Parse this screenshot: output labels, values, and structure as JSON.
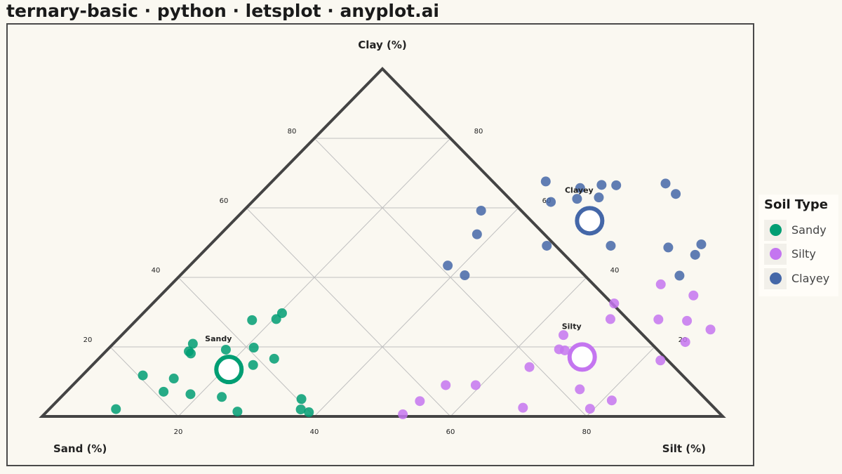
{
  "title": "ternary-basic · python · letsplot · anyplot.ai",
  "colors": {
    "sandy": "#009E73",
    "silty": "#C475F0",
    "clayey": "#4467A8",
    "frame": "#444444",
    "grid": "#C0C0C0"
  },
  "legend": {
    "title": "Soil Type",
    "items": [
      {
        "label": "Sandy",
        "color": "#009E73"
      },
      {
        "label": "Silty",
        "color": "#C475F0"
      },
      {
        "label": "Clayey",
        "color": "#4467A8"
      }
    ]
  },
  "chart_data": {
    "type": "scatter",
    "coordinate_system": "ternary",
    "axes": {
      "top": "Clay (%)",
      "left": "Sand (%)",
      "right": "Silt (%)"
    },
    "ticks": [
      20,
      40,
      60,
      80
    ],
    "grid": true,
    "legend_position": "right",
    "series": [
      {
        "name": "Sandy",
        "color": "#009E73",
        "centroid": {
          "x": 20.7,
          "clay": 13.5,
          "label": "Sandy"
        },
        "points": [
          {
            "x": 20.4,
            "clay": 29.7
          },
          {
            "x": 17.0,
            "clay": 27.7
          },
          {
            "x": 20.4,
            "clay": 28.0
          },
          {
            "x": 11.7,
            "clay": 20.9
          },
          {
            "x": 12.2,
            "clay": 18.7
          },
          {
            "x": 12.8,
            "clay": 18.1
          },
          {
            "x": 17.4,
            "clay": 19.2
          },
          {
            "x": 21.2,
            "clay": 19.8
          },
          {
            "x": 25.8,
            "clay": 16.6
          },
          {
            "x": 23.6,
            "clay": 14.8
          },
          {
            "x": 8.9,
            "clay": 11.8
          },
          {
            "x": 13.9,
            "clay": 10.9
          },
          {
            "x": 14.3,
            "clay": 7.1
          },
          {
            "x": 18.6,
            "clay": 6.4
          },
          {
            "x": 23.6,
            "clay": 5.6
          },
          {
            "x": 9.8,
            "clay": 2.1
          },
          {
            "x": 28.0,
            "clay": 1.4
          },
          {
            "x": 35.6,
            "clay": 5.0
          },
          {
            "x": 37.0,
            "clay": 2.0
          },
          {
            "x": 38.6,
            "clay": 1.2
          }
        ]
      },
      {
        "name": "Silty",
        "color": "#C475F0",
        "centroid": {
          "x": 70.8,
          "clay": 17.1,
          "label": "Silty"
        },
        "points": [
          {
            "x": 71.9,
            "clay": 38.0
          },
          {
            "x": 67.8,
            "clay": 32.5
          },
          {
            "x": 78.3,
            "clay": 34.8
          },
          {
            "x": 64.9,
            "clay": 23.4
          },
          {
            "x": 69.5,
            "clay": 28.0
          },
          {
            "x": 81.0,
            "clay": 27.5
          },
          {
            "x": 76.6,
            "clay": 27.9
          },
          {
            "x": 85.7,
            "clay": 25.0
          },
          {
            "x": 83.8,
            "clay": 21.4
          },
          {
            "x": 82.8,
            "clay": 16.1
          },
          {
            "x": 66.3,
            "clay": 19.3
          },
          {
            "x": 67.3,
            "clay": 19.0
          },
          {
            "x": 64.5,
            "clay": 14.2
          },
          {
            "x": 75.1,
            "clay": 7.8
          },
          {
            "x": 59.2,
            "clay": 9.0
          },
          {
            "x": 54.8,
            "clay": 9.0
          },
          {
            "x": 53.3,
            "clay": 4.4
          },
          {
            "x": 81.4,
            "clay": 4.6
          },
          {
            "x": 69.4,
            "clay": 2.5
          },
          {
            "x": 79.4,
            "clay": 2.2
          },
          {
            "x": 52.7,
            "clay": 0.6
          }
        ]
      },
      {
        "name": "Clayey",
        "color": "#4467A8",
        "centroid": {
          "x": 52.3,
          "clay": 56.3,
          "label": "Clayey"
        },
        "points": [
          {
            "x": 40.2,
            "clay": 67.6
          },
          {
            "x": 46.2,
            "clay": 65.7
          },
          {
            "x": 48.9,
            "clay": 66.6
          },
          {
            "x": 51.1,
            "clay": 66.5
          },
          {
            "x": 43.9,
            "clay": 61.7
          },
          {
            "x": 47.3,
            "clay": 62.6
          },
          {
            "x": 50.3,
            "clay": 63.0
          },
          {
            "x": 58.1,
            "clay": 67.0
          },
          {
            "x": 61.1,
            "clay": 64.0
          },
          {
            "x": 34.9,
            "clay": 59.2
          },
          {
            "x": 37.7,
            "clay": 52.4
          },
          {
            "x": 49.6,
            "clay": 49.1
          },
          {
            "x": 59.0,
            "clay": 49.1
          },
          {
            "x": 67.7,
            "clay": 48.6
          },
          {
            "x": 72.1,
            "clay": 49.5
          },
          {
            "x": 72.7,
            "clay": 46.5
          },
          {
            "x": 37.9,
            "clay": 43.4
          },
          {
            "x": 41.8,
            "clay": 40.6
          },
          {
            "x": 73.4,
            "clay": 40.5
          }
        ]
      }
    ]
  }
}
